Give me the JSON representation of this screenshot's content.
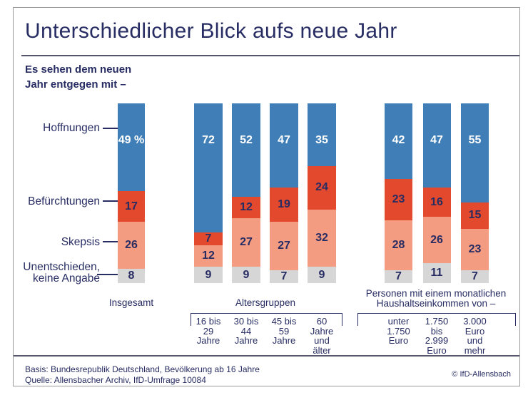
{
  "title": "Unterschiedlicher Blick aufs neue Jahr",
  "subtitle": {
    "line1": "Es sehen dem neuen",
    "line2": "Jahr entgegen mit –"
  },
  "footer": {
    "basis": "Basis: Bundesrepublik Deutschland, Bevölkerung ab 16 Jahre",
    "quelle": "Quelle: Allensbacher Archiv, IfD-Umfrage 10084",
    "copyright": "© IfD-Allensbach"
  },
  "colors": {
    "navy": "#272c63",
    "blue": "#3f7eb6",
    "red": "#e2492d",
    "salmon": "#f49c82",
    "gray": "#d6d6d7",
    "frame_border": "#9b9b9b",
    "rule": "#55556b"
  },
  "chart_data": {
    "type": "bar",
    "stacked": true,
    "unit": "percent",
    "value_range": [
      0,
      100
    ],
    "segments": [
      {
        "name": "Hoffnungen",
        "color": "#3f7eb6",
        "value_color": "#ffffff"
      },
      {
        "name": "Befürchtungen",
        "color": "#e2492d",
        "value_color": "#272c63"
      },
      {
        "name": "Skepsis",
        "color": "#f49c82",
        "value_color": "#272c63"
      },
      {
        "name": "Unentschieden, keine Angabe",
        "color": "#d6d6d7",
        "value_color": "#272c63"
      }
    ],
    "groups": [
      {
        "id": "insgesamt",
        "label_lines": [
          "Insgesamt"
        ],
        "bars": [
          {
            "values": [
              49,
              17,
              26,
              8
            ],
            "display": [
              "49 %",
              "17",
              "26",
              "8"
            ],
            "label_lines": []
          }
        ]
      },
      {
        "id": "altersgruppen",
        "label_lines": [
          "Altersgruppen"
        ],
        "bars": [
          {
            "values": [
              72,
              7,
              12,
              9
            ],
            "label_lines": [
              "16 bis",
              "29",
              "Jahre"
            ]
          },
          {
            "values": [
              52,
              12,
              27,
              9
            ],
            "label_lines": [
              "30 bis",
              "44",
              "Jahre"
            ]
          },
          {
            "values": [
              47,
              19,
              27,
              7
            ],
            "label_lines": [
              "45 bis",
              "59",
              "Jahre"
            ]
          },
          {
            "values": [
              35,
              24,
              32,
              9
            ],
            "label_lines": [
              "60",
              "Jahre",
              "und",
              "älter"
            ]
          }
        ]
      },
      {
        "id": "einkommen",
        "label_lines": [
          "Personen mit einem monatlichen",
          "Haushaltseinkommen von –"
        ],
        "bars": [
          {
            "values": [
              42,
              23,
              28,
              7
            ],
            "label_lines": [
              "unter",
              "1.750",
              "Euro"
            ]
          },
          {
            "values": [
              47,
              16,
              26,
              11
            ],
            "label_lines": [
              "1.750",
              "bis",
              "2.999",
              "Euro"
            ]
          },
          {
            "values": [
              55,
              15,
              23,
              7
            ],
            "label_lines": [
              "3.000",
              "Euro",
              "und",
              "mehr"
            ]
          }
        ]
      }
    ]
  }
}
